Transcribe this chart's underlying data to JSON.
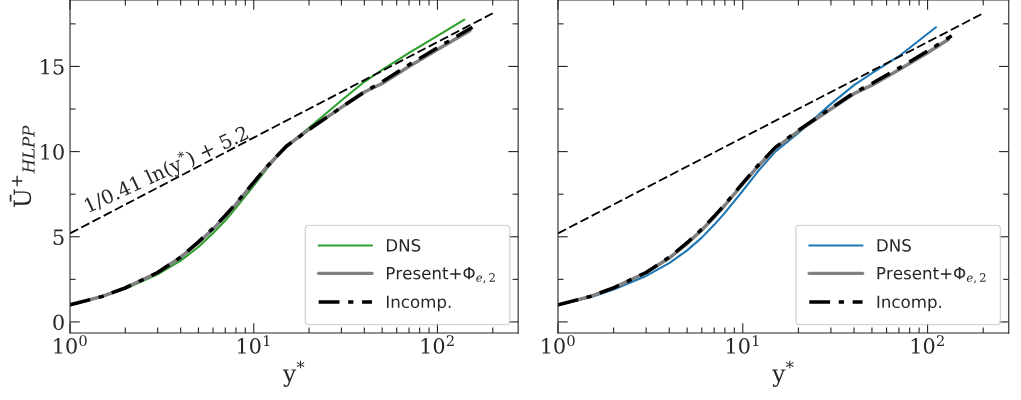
{
  "chart_data": [
    {
      "type": "line",
      "xlabel": "y$^{*}$",
      "ylabel": "Ū$^{+}$$_{HLPP}$",
      "log": "x",
      "grid": false,
      "legend": "bottom right",
      "xlim": [
        1,
        275
      ],
      "ylim": [
        -0.65,
        18.9
      ],
      "xticks": [
        {
          "value": 1,
          "label": "10$^{0}$"
        },
        {
          "value": 2,
          "label": null
        },
        {
          "value": 3,
          "label": null
        },
        {
          "value": 4,
          "label": null
        },
        {
          "value": 5,
          "label": null
        },
        {
          "value": 6,
          "label": null
        },
        {
          "value": 7,
          "label": null
        },
        {
          "value": 8,
          "label": null
        },
        {
          "value": 9,
          "label": null
        },
        {
          "value": 10,
          "label": "10$^{1}$"
        },
        {
          "value": 20,
          "label": null
        },
        {
          "value": 30,
          "label": null
        },
        {
          "value": 40,
          "label": null
        },
        {
          "value": 50,
          "label": null
        },
        {
          "value": 60,
          "label": null
        },
        {
          "value": 70,
          "label": null
        },
        {
          "value": 80,
          "label": null
        },
        {
          "value": 90,
          "label": null
        },
        {
          "value": 100,
          "label": "10$^{2}$"
        },
        {
          "value": 200,
          "label": null
        }
      ],
      "yticks": [
        0,
        {
          "value": 2.5,
          "label": null
        },
        5,
        {
          "value": 7.5,
          "label": null
        },
        10,
        {
          "value": 12.5,
          "label": null
        },
        15,
        {
          "value": 17.5,
          "label": null
        }
      ],
      "annotations": [
        "1/0.41 ln(y$^{*}$) + 5.2"
      ],
      "series": [
        {
          "name": "DNS",
          "color": "#2ca02c",
          "line_style": "solid",
          "x": [
            1,
            1.5,
            2,
            3,
            4,
            5,
            6,
            7,
            8,
            10,
            12,
            15,
            20,
            30,
            40,
            50,
            70,
            100,
            140
          ],
          "values": [
            1.0,
            1.5,
            1.95,
            2.8,
            3.6,
            4.4,
            5.2,
            5.95,
            6.7,
            8.0,
            9.1,
            10.3,
            11.4,
            13.0,
            14.1,
            14.8,
            15.8,
            16.8,
            17.75
          ]
        },
        {
          "name": "Present+Φ$_{e,2}$",
          "color": "#808080",
          "line_style": "solid",
          "x": [
            1,
            1.5,
            2,
            3,
            4,
            5,
            6,
            7,
            8,
            10,
            12,
            15,
            20,
            30,
            40,
            50,
            70,
            100,
            150
          ],
          "values": [
            1.0,
            1.5,
            2.0,
            2.9,
            3.8,
            4.65,
            5.45,
            6.2,
            6.9,
            8.2,
            9.2,
            10.3,
            11.3,
            12.6,
            13.5,
            14.0,
            15.0,
            16.0,
            17.1
          ]
        },
        {
          "name": "Incomp.",
          "color": "#000000",
          "line_style": "dashdot",
          "x": [
            1,
            1.5,
            2,
            3,
            4,
            5,
            6,
            7,
            8,
            10,
            12,
            15,
            20,
            30,
            40,
            50,
            70,
            100,
            155
          ],
          "values": [
            1.0,
            1.5,
            2.0,
            2.9,
            3.8,
            4.7,
            5.5,
            6.25,
            6.95,
            8.2,
            9.2,
            10.3,
            11.3,
            12.6,
            13.5,
            14.1,
            15.1,
            16.1,
            17.3
          ]
        },
        {
          "color": "#000000",
          "line_style": "dashed",
          "x": [
            1,
            10,
            100,
            200
          ],
          "values": [
            5.2,
            10.82,
            16.43,
            18.12
          ]
        }
      ]
    },
    {
      "type": "line",
      "xlabel": "y$^{*}$",
      "log": "x",
      "grid": false,
      "legend": "bottom right",
      "tick_labels": "x",
      "xlim": [
        1,
        275
      ],
      "ylim": [
        -0.65,
        18.9
      ],
      "xticks": [
        {
          "value": 1,
          "label": "10$^{0}$"
        },
        {
          "value": 2,
          "label": null
        },
        {
          "value": 3,
          "label": null
        },
        {
          "value": 4,
          "label": null
        },
        {
          "value": 5,
          "label": null
        },
        {
          "value": 6,
          "label": null
        },
        {
          "value": 7,
          "label": null
        },
        {
          "value": 8,
          "label": null
        },
        {
          "value": 9,
          "label": null
        },
        {
          "value": 10,
          "label": "10$^{1}$"
        },
        {
          "value": 20,
          "label": null
        },
        {
          "value": 30,
          "label": null
        },
        {
          "value": 40,
          "label": null
        },
        {
          "value": 50,
          "label": null
        },
        {
          "value": 60,
          "label": null
        },
        {
          "value": 70,
          "label": null
        },
        {
          "value": 80,
          "label": null
        },
        {
          "value": 90,
          "label": null
        },
        {
          "value": 100,
          "label": "10$^{2}$"
        },
        {
          "value": 200,
          "label": null
        }
      ],
      "yticks": [
        0,
        {
          "value": 2.5,
          "label": null
        },
        5,
        {
          "value": 7.5,
          "label": null
        },
        10,
        {
          "value": 12.5,
          "label": null
        },
        15,
        {
          "value": 17.5,
          "label": null
        }
      ],
      "series": [
        {
          "name": "DNS",
          "color": "#1f77b4",
          "line_style": "solid",
          "x": [
            1,
            1.5,
            2,
            3,
            4,
            5,
            6,
            7,
            8,
            10,
            12,
            15,
            20,
            30,
            40,
            50,
            70,
            111
          ],
          "values": [
            1.0,
            1.45,
            1.9,
            2.7,
            3.45,
            4.2,
            4.95,
            5.7,
            6.4,
            7.7,
            8.8,
            10.0,
            11.1,
            12.8,
            13.9,
            14.6,
            15.6,
            17.3
          ]
        },
        {
          "name": "Present+Φ$_{e,2}$",
          "color": "#808080",
          "line_style": "solid",
          "x": [
            1,
            1.5,
            2,
            3,
            4,
            5,
            6,
            7,
            8,
            10,
            12,
            15,
            20,
            30,
            40,
            50,
            70,
            100,
            130
          ],
          "values": [
            1.0,
            1.5,
            2.0,
            2.9,
            3.75,
            4.6,
            5.4,
            6.15,
            6.85,
            8.1,
            9.1,
            10.2,
            11.2,
            12.5,
            13.4,
            13.9,
            14.8,
            15.8,
            16.6
          ]
        },
        {
          "name": "Incomp.",
          "color": "#000000",
          "line_style": "dashdot",
          "x": [
            1,
            1.5,
            2,
            3,
            4,
            5,
            6,
            7,
            8,
            10,
            12,
            15,
            20,
            30,
            40,
            50,
            70,
            100,
            135
          ],
          "values": [
            1.0,
            1.5,
            2.0,
            2.9,
            3.8,
            4.65,
            5.45,
            6.2,
            6.9,
            8.15,
            9.15,
            10.25,
            11.25,
            12.55,
            13.45,
            14.0,
            14.9,
            15.9,
            16.8
          ]
        },
        {
          "color": "#000000",
          "line_style": "dashed",
          "x": [
            1,
            10,
            100,
            200
          ],
          "values": [
            5.2,
            10.82,
            16.43,
            18.12
          ]
        }
      ]
    }
  ]
}
